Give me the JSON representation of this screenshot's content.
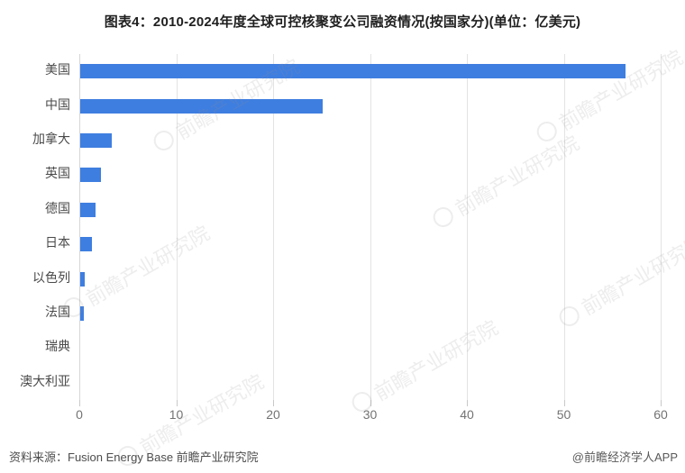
{
  "title": "图表4：2010-2024年度全球可控核聚变公司融资情况(按国家分)(单位：亿美元)",
  "chart_data": {
    "type": "bar",
    "orientation": "horizontal",
    "title": "图表4：2010-2024年度全球可控核聚变公司融资情况(按国家分)(单位：亿美元)",
    "unit": "亿美元",
    "categories": [
      "美国",
      "中国",
      "加拿大",
      "英国",
      "德国",
      "日本",
      "以色列",
      "法国",
      "瑞典",
      "澳大利亚"
    ],
    "values": [
      56.3,
      25.0,
      3.3,
      2.1,
      1.6,
      1.2,
      0.5,
      0.4,
      0,
      0
    ],
    "xlabel": "",
    "ylabel": "",
    "xlim": [
      0,
      60
    ],
    "xticks": [
      0,
      10,
      20,
      30,
      40,
      50,
      60
    ],
    "grid": true,
    "legend": "none",
    "bar_color": "#3E7EE0",
    "gridline_color": "#e3e3e3"
  },
  "footer": {
    "source": "资料来源：Fusion Energy Base 前瞻产业研究院",
    "credit": "@前瞻经济学人APP"
  },
  "watermark": {
    "text": "前瞻产业研究院",
    "logo": "circle-c-logo"
  }
}
